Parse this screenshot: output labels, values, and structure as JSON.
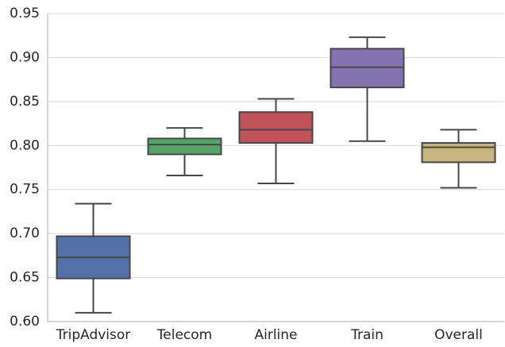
{
  "chart_data": {
    "type": "box",
    "title": "",
    "xlabel": "",
    "ylabel": "",
    "ylim": [
      0.6,
      0.95
    ],
    "yticks": [
      "0.60",
      "0.65",
      "0.70",
      "0.75",
      "0.80",
      "0.85",
      "0.90",
      "0.95"
    ],
    "grid": "horizontal",
    "categories": [
      "TripAdvisor",
      "Telecom",
      "Airline",
      "Train",
      "Overall"
    ],
    "boxes": [
      {
        "category": "TripAdvisor",
        "whisker_low": 0.61,
        "q1": 0.649,
        "median": 0.673,
        "q3": 0.697,
        "whisker_high": 0.734
      },
      {
        "category": "Telecom",
        "whisker_low": 0.766,
        "q1": 0.79,
        "median": 0.801,
        "q3": 0.808,
        "whisker_high": 0.82
      },
      {
        "category": "Airline",
        "whisker_low": 0.757,
        "q1": 0.803,
        "median": 0.818,
        "q3": 0.838,
        "whisker_high": 0.853
      },
      {
        "category": "Train",
        "whisker_low": 0.805,
        "q1": 0.866,
        "median": 0.889,
        "q3": 0.91,
        "whisker_high": 0.923
      },
      {
        "category": "Overall",
        "whisker_low": 0.752,
        "q1": 0.781,
        "median": 0.798,
        "q3": 0.803,
        "whisker_high": 0.818
      }
    ],
    "colors": {
      "TripAdvisor": "#5470a8",
      "Telecom": "#56a46a",
      "Airline": "#c2525a",
      "Train": "#8274b1",
      "Overall": "#c8b47e",
      "line": "#474747",
      "grid": "#d5d5d5",
      "axis": "#bcbcbc",
      "text": "#262626"
    }
  }
}
